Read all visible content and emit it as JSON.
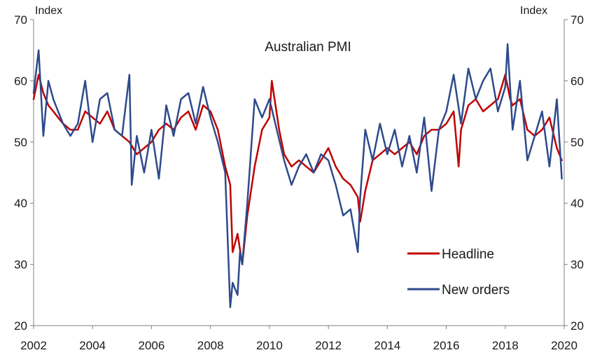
{
  "chart_data": {
    "type": "line",
    "title": "Australian PMI",
    "y_unit_left": "Index",
    "y_unit_right": "Index",
    "xlim": [
      2002,
      2020
    ],
    "ylim": [
      20,
      70
    ],
    "x_ticks": [
      "2002",
      "2004",
      "2006",
      "2008",
      "2010",
      "2012",
      "2014",
      "2016",
      "2018",
      "2020"
    ],
    "y_ticks": [
      "20",
      "30",
      "40",
      "50",
      "60",
      "70"
    ],
    "grid": false,
    "legend_position": "bottom-right",
    "series": [
      {
        "name": "Headline",
        "color": "#c00000",
        "x": [
          2002.0,
          2002.17,
          2002.33,
          2002.5,
          2002.67,
          2002.83,
          2003.0,
          2003.25,
          2003.5,
          2003.75,
          2004.0,
          2004.25,
          2004.5,
          2004.75,
          2005.0,
          2005.25,
          2005.5,
          2005.75,
          2006.0,
          2006.25,
          2006.5,
          2006.75,
          2007.0,
          2007.25,
          2007.5,
          2007.75,
          2008.0,
          2008.25,
          2008.5,
          2008.67,
          2008.75,
          2008.92,
          2009.08,
          2009.25,
          2009.5,
          2009.75,
          2010.0,
          2010.08,
          2010.33,
          2010.5,
          2010.75,
          2011.0,
          2011.25,
          2011.5,
          2011.75,
          2012.0,
          2012.25,
          2012.5,
          2012.75,
          2013.0,
          2013.08,
          2013.25,
          2013.5,
          2013.75,
          2014.0,
          2014.25,
          2014.5,
          2014.75,
          2015.0,
          2015.25,
          2015.5,
          2015.75,
          2016.0,
          2016.25,
          2016.42,
          2016.5,
          2016.75,
          2017.0,
          2017.25,
          2017.5,
          2017.75,
          2018.0,
          2018.17,
          2018.25,
          2018.5,
          2018.75,
          2019.0,
          2019.25,
          2019.5,
          2019.75,
          2019.92
        ],
        "y": [
          57,
          61,
          58,
          56,
          55,
          54,
          53,
          52,
          52,
          55,
          54,
          53,
          55,
          52,
          51,
          50,
          48,
          49,
          50,
          52,
          53,
          52,
          54,
          55,
          52,
          56,
          55,
          52,
          46,
          43,
          32,
          35,
          30,
          38,
          46,
          52,
          54,
          60,
          52,
          48,
          46,
          47,
          46,
          45,
          47,
          49,
          46,
          44,
          43,
          41,
          37,
          42,
          47,
          48,
          49,
          48,
          49,
          50,
          48,
          51,
          52,
          52,
          53,
          55,
          46,
          52,
          56,
          57,
          55,
          56,
          57,
          61,
          57,
          56,
          57,
          52,
          51,
          52,
          54,
          49,
          47
        ]
      },
      {
        "name": "New orders",
        "color": "#2e4a8c",
        "x": [
          2002.0,
          2002.17,
          2002.33,
          2002.5,
          2002.67,
          2002.83,
          2003.0,
          2003.25,
          2003.5,
          2003.75,
          2004.0,
          2004.25,
          2004.5,
          2004.75,
          2005.0,
          2005.25,
          2005.33,
          2005.5,
          2005.75,
          2006.0,
          2006.25,
          2006.5,
          2006.75,
          2007.0,
          2007.25,
          2007.5,
          2007.75,
          2008.0,
          2008.25,
          2008.5,
          2008.67,
          2008.75,
          2008.92,
          2009.0,
          2009.08,
          2009.25,
          2009.5,
          2009.75,
          2010.0,
          2010.25,
          2010.5,
          2010.75,
          2011.0,
          2011.25,
          2011.5,
          2011.75,
          2012.0,
          2012.25,
          2012.5,
          2012.75,
          2013.0,
          2013.08,
          2013.25,
          2013.5,
          2013.75,
          2014.0,
          2014.25,
          2014.5,
          2014.75,
          2015.0,
          2015.25,
          2015.5,
          2015.75,
          2016.0,
          2016.25,
          2016.5,
          2016.75,
          2017.0,
          2017.25,
          2017.5,
          2017.75,
          2018.0,
          2018.08,
          2018.25,
          2018.5,
          2018.75,
          2019.0,
          2019.25,
          2019.5,
          2019.75,
          2019.92
        ],
        "y": [
          58,
          65,
          51,
          60,
          57,
          55,
          53,
          51,
          53,
          60,
          50,
          57,
          58,
          52,
          51,
          61,
          43,
          51,
          45,
          52,
          44,
          56,
          51,
          57,
          58,
          53,
          59,
          54,
          50,
          45,
          23,
          27,
          25,
          32,
          30,
          40,
          57,
          54,
          57,
          52,
          47,
          43,
          46,
          48,
          45,
          48,
          47,
          43,
          38,
          39,
          32,
          41,
          52,
          47,
          53,
          48,
          52,
          46,
          51,
          45,
          54,
          42,
          52,
          55,
          61,
          53,
          62,
          57,
          60,
          62,
          55,
          59,
          66,
          52,
          60,
          47,
          51,
          55,
          46,
          57,
          44
        ]
      }
    ]
  }
}
